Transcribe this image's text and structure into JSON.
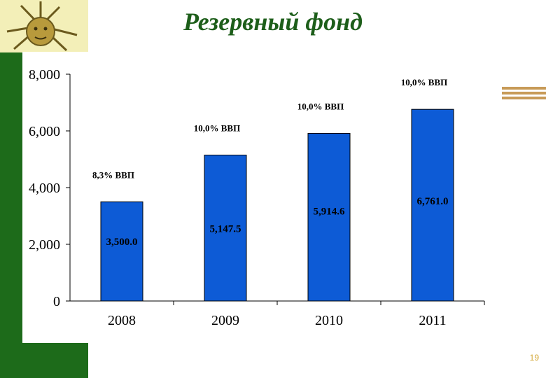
{
  "slide": {
    "title": "Резервный фонд",
    "page_number": "19"
  },
  "chart_data": {
    "type": "bar",
    "title": "Резервный фонд",
    "categories": [
      "2008",
      "2009",
      "2010",
      "2011"
    ],
    "values": [
      3500.0,
      5147.5,
      5914.6,
      6761.0
    ],
    "value_labels": [
      "3,500.0",
      "5,147.5",
      "5,914.6",
      "6,761.0"
    ],
    "annotations": [
      "8,3% ВВП",
      "10,0% ВВП",
      "10,0% ВВП",
      "10,0% ВВП"
    ],
    "yticks": [
      0,
      2000,
      4000,
      6000,
      8000
    ],
    "ytick_labels": [
      "0",
      "2,000",
      "4,000",
      "6,000",
      "8,000"
    ],
    "ylim": [
      0,
      8000
    ],
    "bar_color": "#0d5bd6",
    "grid": false,
    "legend": "none"
  }
}
